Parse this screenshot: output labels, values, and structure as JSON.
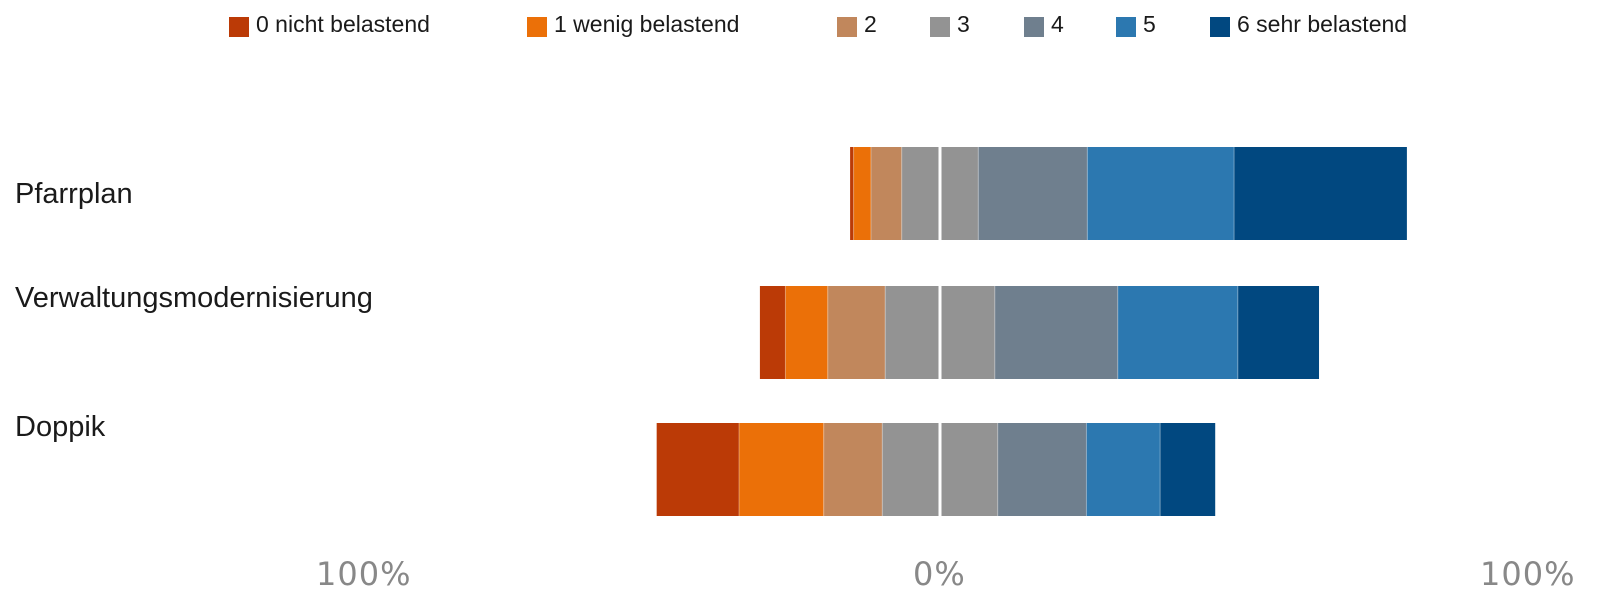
{
  "chart_data": {
    "type": "bar",
    "orientation": "horizontal",
    "stacking": "diverging",
    "categories": [
      "Pfarrplan",
      "Verwaltungsmodernisierung",
      "Doppik"
    ],
    "series": [
      {
        "name": "0 nicht belastend",
        "color": "#bb3a06",
        "values": [
          0.6,
          4.4,
          14.2
        ]
      },
      {
        "name": "1 wenig belastend",
        "color": "#eb7008",
        "values": [
          3.0,
          7.3,
          14.6
        ]
      },
      {
        "name": "2",
        "color": "#c1875c",
        "values": [
          5.3,
          9.9,
          10.1
        ]
      },
      {
        "name": "3",
        "color": "#939393",
        "values": [
          13.2,
          18.9,
          19.9
        ]
      },
      {
        "name": "4",
        "color": "#6f7f8e",
        "values": [
          18.8,
          21.2,
          15.3
        ]
      },
      {
        "name": "5",
        "color": "#2c78b0",
        "values": [
          25.3,
          20.7,
          12.7
        ]
      },
      {
        "name": "6 sehr belastend",
        "color": "#014880",
        "values": [
          29.8,
          14.0,
          9.5
        ]
      }
    ],
    "neutral_series": "3",
    "xlim": [
      -100,
      100
    ],
    "axis_ticks": [
      "100%",
      "0%",
      "100%"
    ],
    "legend_position": "top",
    "grid": false
  }
}
